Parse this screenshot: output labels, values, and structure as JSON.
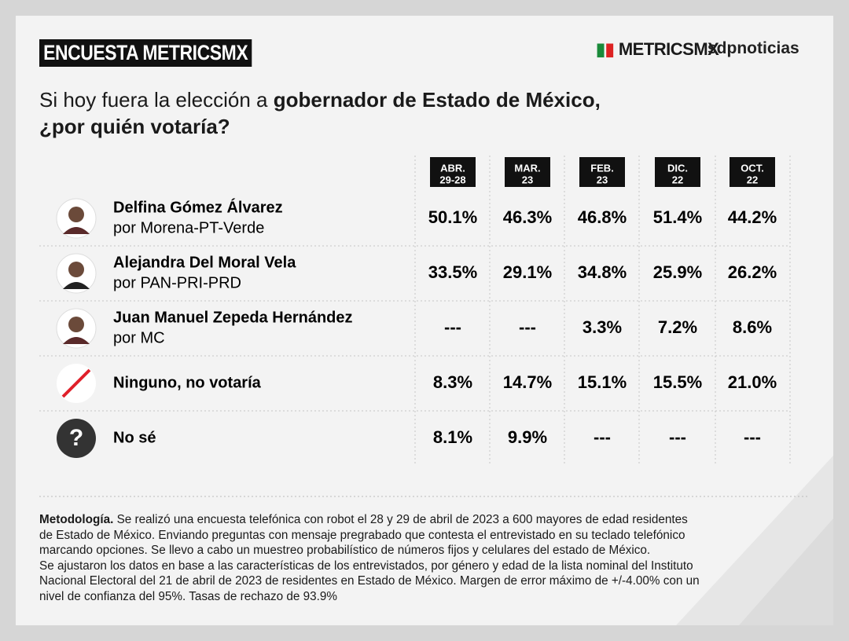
{
  "header": {
    "badge": "ENCUESTA METRICSMX",
    "logo_metrics": "METRICSMX",
    "logo_sdp": "sdpnoticias"
  },
  "question": {
    "line1_normal": "Si hoy fuera la elección a ",
    "line1_bold": "gobernador de Estado de México,",
    "line2_bold": "¿por quién votaría?"
  },
  "table": {
    "columns": [
      [
        "ABR.",
        "29-28"
      ],
      [
        "MAR.",
        "23"
      ],
      [
        "FEB.",
        "23"
      ],
      [
        "DIC.",
        "22"
      ],
      [
        "OCT.",
        "22"
      ]
    ],
    "rows": [
      {
        "name": "Delfina Gómez Álvarez",
        "party": "por Morena-PT-Verde",
        "icon": "photo",
        "values": [
          "50.1%",
          "46.3%",
          "46.8%",
          "51.4%",
          "44.2%"
        ]
      },
      {
        "name": "Alejandra Del Moral Vela",
        "party": "por PAN-PRI-PRD",
        "icon": "photo",
        "values": [
          "33.5%",
          "29.1%",
          "34.8%",
          "25.9%",
          "26.2%"
        ]
      },
      {
        "name": "Juan Manuel Zepeda Hernández",
        "party": "por MC",
        "icon": "photo",
        "values": [
          "---",
          "---",
          "3.3%",
          "7.2%",
          "8.6%"
        ]
      },
      {
        "name": "Ninguno, no votaría",
        "icon": "slash",
        "values": [
          "8.3%",
          "14.7%",
          "15.1%",
          "15.5%",
          "21.0%"
        ]
      },
      {
        "name": "No sé",
        "icon": "?",
        "values": [
          "8.1%",
          "9.9%",
          "---",
          "---",
          "---"
        ]
      }
    ]
  },
  "methodology": {
    "label": "Metodología.",
    "lines": [
      " Se realizó una encuesta telefónica con robot el 28 y 29 de abril de 2023 a 600 mayores de edad residentes",
      "de Estado de México. Enviando preguntas con mensaje pregrabado que contesta el entrevistado en su teclado telefónico",
      "marcando opciones. Se llevo a cabo un muestreo probabilístico de números fijos y celulares del estado de México.",
      "Se ajustaron los datos en base a las características de los entrevistados, por género y edad de la lista nominal del Instituto",
      "Nacional Electoral del 21 de abril de 2023 de residentes en Estado de México. Margen de error máximo de +/-4.00% con un",
      "nivel de confianza del 95%. Tasas de rechazo de 93.9%"
    ]
  }
}
